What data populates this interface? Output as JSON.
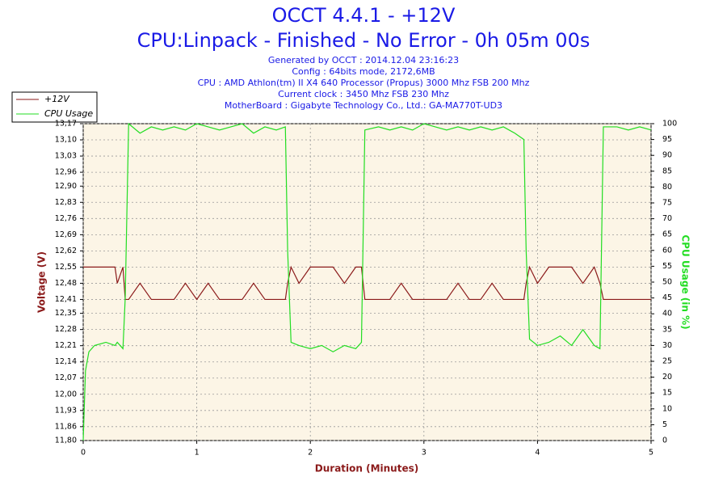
{
  "chart_data": {
    "type": "line",
    "title": "OCCT 4.4.1 - +12V",
    "subtitle": "CPU:Linpack - Finished - No Error - 0h 05m 00s",
    "annotations": [
      "Generated by OCCT : 2014.12.04 23:16:23",
      "Config : 64bits mode, 2172,6MB",
      "CPU : AMD Athlon(tm) II X4 640 Processor (Propus) 3000 Mhz FSB 200 Mhz",
      "Current clock : 3450 Mhz FSB 230 Mhz",
      "MotherBoard : Gigabyte Technology Co., Ltd.: GA-MA770T-UD3"
    ],
    "xlabel": "Duration (Minutes)",
    "ylabel": "Voltage (V)",
    "y2label": "CPU Usage (in %)",
    "legend": "upper left",
    "grid": true,
    "x": [
      0,
      0.02,
      0.05,
      0.1,
      0.2,
      0.28,
      0.3,
      0.35,
      0.37,
      0.4,
      0.5,
      0.6,
      0.7,
      0.8,
      0.9,
      1.0,
      1.1,
      1.2,
      1.3,
      1.4,
      1.5,
      1.6,
      1.7,
      1.78,
      1.8,
      1.83,
      1.9,
      2.0,
      2.1,
      2.2,
      2.3,
      2.4,
      2.45,
      2.48,
      2.6,
      2.7,
      2.8,
      2.9,
      3.0,
      3.1,
      3.2,
      3.3,
      3.4,
      3.5,
      3.6,
      3.7,
      3.8,
      3.88,
      3.9,
      3.93,
      4.0,
      4.1,
      4.2,
      4.3,
      4.4,
      4.5,
      4.55,
      4.58,
      4.7,
      4.8,
      4.9,
      5.0
    ],
    "series": [
      {
        "name": "+12V",
        "color": "#8b1a1a",
        "axis": "y",
        "values": [
          12.55,
          12.55,
          12.55,
          12.55,
          12.55,
          12.55,
          12.48,
          12.55,
          12.41,
          12.41,
          12.48,
          12.41,
          12.41,
          12.41,
          12.48,
          12.41,
          12.48,
          12.41,
          12.41,
          12.41,
          12.48,
          12.41,
          12.41,
          12.41,
          12.48,
          12.55,
          12.48,
          12.55,
          12.55,
          12.55,
          12.48,
          12.55,
          12.55,
          12.41,
          12.41,
          12.41,
          12.48,
          12.41,
          12.41,
          12.41,
          12.41,
          12.48,
          12.41,
          12.41,
          12.48,
          12.41,
          12.41,
          12.41,
          12.48,
          12.55,
          12.48,
          12.55,
          12.55,
          12.55,
          12.48,
          12.55,
          12.48,
          12.41,
          12.41,
          12.41,
          12.41,
          12.41
        ]
      },
      {
        "name": "CPU Usage",
        "color": "#22dd22",
        "axis": "y2",
        "values": [
          0,
          22,
          28,
          30,
          31,
          30,
          31,
          29,
          45,
          100,
          97,
          99,
          98,
          99,
          98,
          100,
          99,
          98,
          99,
          100,
          97,
          99,
          98,
          99,
          60,
          31,
          30,
          29,
          30,
          28,
          30,
          29,
          31,
          98,
          99,
          98,
          99,
          98,
          100,
          99,
          98,
          99,
          98,
          99,
          98,
          99,
          97,
          95,
          60,
          32,
          30,
          31,
          33,
          30,
          35,
          30,
          29,
          99,
          99,
          98,
          99,
          98
        ]
      }
    ],
    "xlim": [
      0,
      5
    ],
    "xticks": [
      0,
      1,
      2,
      3,
      4,
      5
    ],
    "ylim": [
      11.8,
      13.17
    ],
    "yticks": [
      {
        "value": 11.8,
        "label": "11,80"
      },
      {
        "value": 11.86,
        "label": "11,86"
      },
      {
        "value": 11.93,
        "label": "11,93"
      },
      {
        "value": 12.0,
        "label": "12,00"
      },
      {
        "value": 12.07,
        "label": "12,07"
      },
      {
        "value": 12.14,
        "label": "12,14"
      },
      {
        "value": 12.21,
        "label": "12,21"
      },
      {
        "value": 12.28,
        "label": "12,28"
      },
      {
        "value": 12.35,
        "label": "12,35"
      },
      {
        "value": 12.41,
        "label": "12,41"
      },
      {
        "value": 12.48,
        "label": "12,48"
      },
      {
        "value": 12.55,
        "label": "12,55"
      },
      {
        "value": 12.62,
        "label": "12,62"
      },
      {
        "value": 12.69,
        "label": "12,69"
      },
      {
        "value": 12.76,
        "label": "12,76"
      },
      {
        "value": 12.83,
        "label": "12,83"
      },
      {
        "value": 12.9,
        "label": "12,90"
      },
      {
        "value": 12.96,
        "label": "12,96"
      },
      {
        "value": 13.03,
        "label": "13,03"
      },
      {
        "value": 13.1,
        "label": "13,10"
      },
      {
        "value": 13.17,
        "label": "13,17"
      }
    ],
    "y2lim": [
      0,
      100
    ],
    "y2ticks": [
      0,
      5,
      10,
      15,
      20,
      25,
      30,
      35,
      40,
      45,
      50,
      55,
      60,
      65,
      70,
      75,
      80,
      85,
      90,
      95,
      100
    ]
  }
}
